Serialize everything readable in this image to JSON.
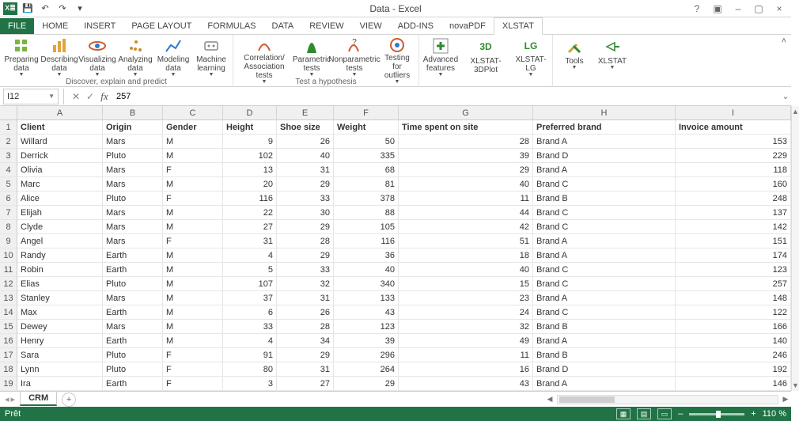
{
  "app": {
    "title": "Data - Excel"
  },
  "qat": {
    "save": "💾",
    "undo": "↶",
    "redo": "↷"
  },
  "titlebar_icons": {
    "help": "?",
    "ribbon_opts": "▣",
    "min": "–",
    "max": "▢",
    "close": "×"
  },
  "tabs": {
    "file": "FILE",
    "home": "HOME",
    "insert": "INSERT",
    "pagelayout": "PAGE LAYOUT",
    "formulas": "FORMULAS",
    "data": "DATA",
    "review": "REVIEW",
    "view": "VIEW",
    "addins": "ADD-INS",
    "novapdf": "novaPDF",
    "xlstat": "XLSTAT"
  },
  "ribbon": {
    "preparing": "Preparing\ndata",
    "describing": "Describing\ndata",
    "visualizing": "Visualizing\ndata",
    "analyzing": "Analyzing\ndata",
    "modeling": "Modeling\ndata",
    "machine": "Machine\nlearning",
    "group_discover": "Discover, explain and predict",
    "correlation": "Correlation/\nAssociation tests",
    "parametric": "Parametric\ntests",
    "nonparametric": "Nonparametric\ntests",
    "outliers": "Testing for\noutliers",
    "group_hypothesis": "Test a hypothesis",
    "advanced": "Advanced\nfeatures",
    "xlstat3d": "XLSTAT-3DPlot",
    "xlstatlg": "XLSTAT-\nLG",
    "tools": "Tools",
    "xlstat": "XLSTAT"
  },
  "namebox": "I12",
  "formula": "257",
  "columns": [
    {
      "letter": "A",
      "name": "Client",
      "width": 108,
      "align": "left"
    },
    {
      "letter": "B",
      "name": "Origin",
      "width": 76,
      "align": "left"
    },
    {
      "letter": "C",
      "name": "Gender",
      "width": 76,
      "align": "left"
    },
    {
      "letter": "D",
      "name": "Height",
      "width": 68,
      "align": "right"
    },
    {
      "letter": "E",
      "name": "Shoe size",
      "width": 72,
      "align": "right"
    },
    {
      "letter": "F",
      "name": "Weight",
      "width": 82,
      "align": "right"
    },
    {
      "letter": "G",
      "name": "Time spent on site",
      "width": 170,
      "align": "right"
    },
    {
      "letter": "H",
      "name": "Preferred brand",
      "width": 180,
      "align": "left"
    },
    {
      "letter": "I",
      "name": "Invoice amount",
      "width": 146,
      "align": "right"
    }
  ],
  "rows": [
    [
      "Willard",
      "Mars",
      "M",
      "9",
      "26",
      "50",
      "28",
      "Brand A",
      "153"
    ],
    [
      "Derrick",
      "Pluto",
      "M",
      "102",
      "40",
      "335",
      "39",
      "Brand D",
      "229"
    ],
    [
      "Olivia",
      "Mars",
      "F",
      "13",
      "31",
      "68",
      "29",
      "Brand A",
      "118"
    ],
    [
      "Marc",
      "Mars",
      "M",
      "20",
      "29",
      "81",
      "40",
      "Brand C",
      "160"
    ],
    [
      "Alice",
      "Pluto",
      "F",
      "116",
      "33",
      "378",
      "11",
      "Brand B",
      "248"
    ],
    [
      "Elijah",
      "Mars",
      "M",
      "22",
      "30",
      "88",
      "44",
      "Brand C",
      "137"
    ],
    [
      "Clyde",
      "Mars",
      "M",
      "27",
      "29",
      "105",
      "42",
      "Brand C",
      "142"
    ],
    [
      "Angel",
      "Mars",
      "F",
      "31",
      "28",
      "116",
      "51",
      "Brand A",
      "151"
    ],
    [
      "Randy",
      "Earth",
      "M",
      "4",
      "29",
      "36",
      "18",
      "Brand A",
      "174"
    ],
    [
      "Robin",
      "Earth",
      "M",
      "5",
      "33",
      "40",
      "40",
      "Brand C",
      "123"
    ],
    [
      "Elias",
      "Pluto",
      "M",
      "107",
      "32",
      "340",
      "15",
      "Brand C",
      "257"
    ],
    [
      "Stanley",
      "Mars",
      "M",
      "37",
      "31",
      "133",
      "23",
      "Brand A",
      "148"
    ],
    [
      "Max",
      "Earth",
      "M",
      "6",
      "26",
      "43",
      "24",
      "Brand C",
      "122"
    ],
    [
      "Dewey",
      "Mars",
      "M",
      "33",
      "28",
      "123",
      "32",
      "Brand B",
      "166"
    ],
    [
      "Henry",
      "Earth",
      "M",
      "4",
      "34",
      "39",
      "49",
      "Brand A",
      "140"
    ],
    [
      "Sara",
      "Pluto",
      "F",
      "91",
      "29",
      "296",
      "11",
      "Brand B",
      "246"
    ],
    [
      "Lynn",
      "Pluto",
      "F",
      "80",
      "31",
      "264",
      "16",
      "Brand D",
      "192"
    ],
    [
      "Ira",
      "Earth",
      "F",
      "3",
      "27",
      "29",
      "43",
      "Brand A",
      "146"
    ]
  ],
  "sheet_tab": "CRM",
  "status_text": "Prêt",
  "zoom": "110 %"
}
